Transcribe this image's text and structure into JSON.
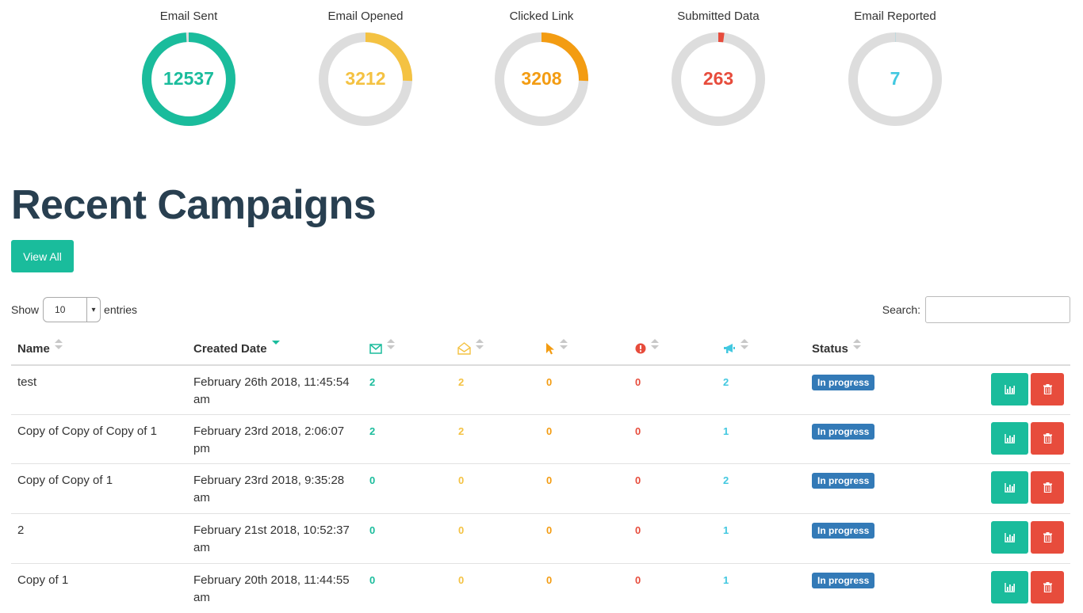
{
  "colors": {
    "teal": "#1abc9c",
    "yellow": "#f4c242",
    "orange": "#f39c12",
    "red": "#e74c3c",
    "cyan": "#42c8e0",
    "ring_track": "#dddddd",
    "title": "#283f50",
    "badge_blue": "#337ab7"
  },
  "stats": [
    {
      "label": "Email Sent",
      "value": "12537",
      "fraction": 0.99,
      "color": "#1abc9c",
      "num_color": "#1abc9c"
    },
    {
      "label": "Email Opened",
      "value": "3212",
      "fraction": 0.256,
      "color": "#f4c242",
      "num_color": "#f4c242"
    },
    {
      "label": "Clicked Link",
      "value": "3208",
      "fraction": 0.256,
      "color": "#f39c12",
      "num_color": "#f39c12"
    },
    {
      "label": "Submitted Data",
      "value": "263",
      "fraction": 0.021,
      "color": "#e74c3c",
      "num_color": "#e74c3c"
    },
    {
      "label": "Email Reported",
      "value": "7",
      "fraction": 0.0006,
      "color": "#42c8e0",
      "num_color": "#42c8e0"
    }
  ],
  "page": {
    "title": "Recent Campaigns",
    "view_all_label": "View All"
  },
  "table_controls": {
    "show_label": "Show",
    "page_length": "10",
    "entries_label": "entries",
    "search_label": "Search:",
    "search_value": ""
  },
  "columns": {
    "name": "Name",
    "created": "Created Date",
    "sent_icon": "envelope-icon",
    "opened_icon": "envelope-open-icon",
    "clicked_icon": "mouse-pointer-icon",
    "submitted_icon": "exclamation-circle-icon",
    "reported_icon": "bullhorn-icon",
    "status": "Status"
  },
  "rows": [
    {
      "name": "test",
      "date1": "February 26th 2018, 11:45:54",
      "date2": "am",
      "sent": "2",
      "opened": "2",
      "clicked": "0",
      "submitted": "0",
      "reported": "2",
      "status": "In progress"
    },
    {
      "name": "Copy of Copy of Copy of 1",
      "date1": "February 23rd 2018, 2:06:07",
      "date2": "pm",
      "sent": "2",
      "opened": "2",
      "clicked": "0",
      "submitted": "0",
      "reported": "1",
      "status": "In progress"
    },
    {
      "name": "Copy of Copy of 1",
      "date1": "February 23rd 2018, 9:35:28",
      "date2": "am",
      "sent": "0",
      "opened": "0",
      "clicked": "0",
      "submitted": "0",
      "reported": "2",
      "status": "In progress"
    },
    {
      "name": "2",
      "date1": "February 21st 2018, 10:52:37",
      "date2": "am",
      "sent": "0",
      "opened": "0",
      "clicked": "0",
      "submitted": "0",
      "reported": "1",
      "status": "In progress"
    },
    {
      "name": "Copy of 1",
      "date1": "February 20th 2018, 11:44:55",
      "date2": "am",
      "sent": "0",
      "opened": "0",
      "clicked": "0",
      "submitted": "0",
      "reported": "1",
      "status": "In progress"
    }
  ]
}
